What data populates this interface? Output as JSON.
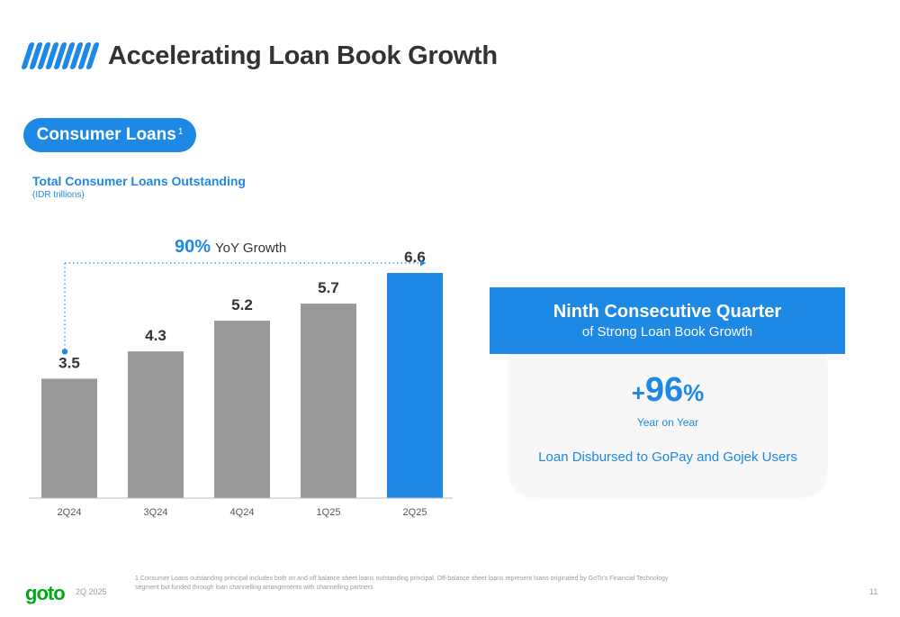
{
  "header": {
    "title": "Accelerating Loan Book Growth"
  },
  "pill": {
    "label": "Consumer Loans",
    "footnote_marker": "1"
  },
  "chart_data": {
    "type": "bar",
    "title": "Total Consumer Loans Outstanding",
    "unit": "(IDR trillions)",
    "categories": [
      "2Q24",
      "3Q24",
      "4Q24",
      "1Q25",
      "2Q25"
    ],
    "values": [
      3.5,
      4.3,
      5.2,
      5.7,
      6.6
    ],
    "value_labels": [
      "3.5",
      "4.3",
      "5.2",
      "5.7",
      "6.6"
    ],
    "highlight_index": 4,
    "ylim": [
      0,
      6.6
    ],
    "grid": false,
    "annotation": {
      "value": "90%",
      "text": "YoY Growth",
      "from": "2Q24",
      "to": "2Q25"
    },
    "colors": {
      "bar": "#999999",
      "highlight": "#1e88e5",
      "annotation": "#1e88e5"
    }
  },
  "card": {
    "title": "Ninth Consecutive Quarter",
    "subtitle": "of Strong Loan Book Growth",
    "stat_sign": "+",
    "stat_value": "96",
    "stat_unit": "%",
    "stat_caption": "Year on Year",
    "description": "Loan Disbursed to GoPay and Gojek Users"
  },
  "footer": {
    "footnote": "1 Consumer Loans outstanding principal includes both on and off balance sheet loans outstanding principal. Off-balance sheet loans represent loans originated by GoTo's Financial Technology segment but funded through loan channelling arrangements with channelling partners",
    "logo": "goto",
    "period": "2Q 2025",
    "page_number": "11"
  },
  "colors": {
    "accent": "#1e88e5",
    "brand_green": "#00aa13",
    "text": "#333333"
  }
}
